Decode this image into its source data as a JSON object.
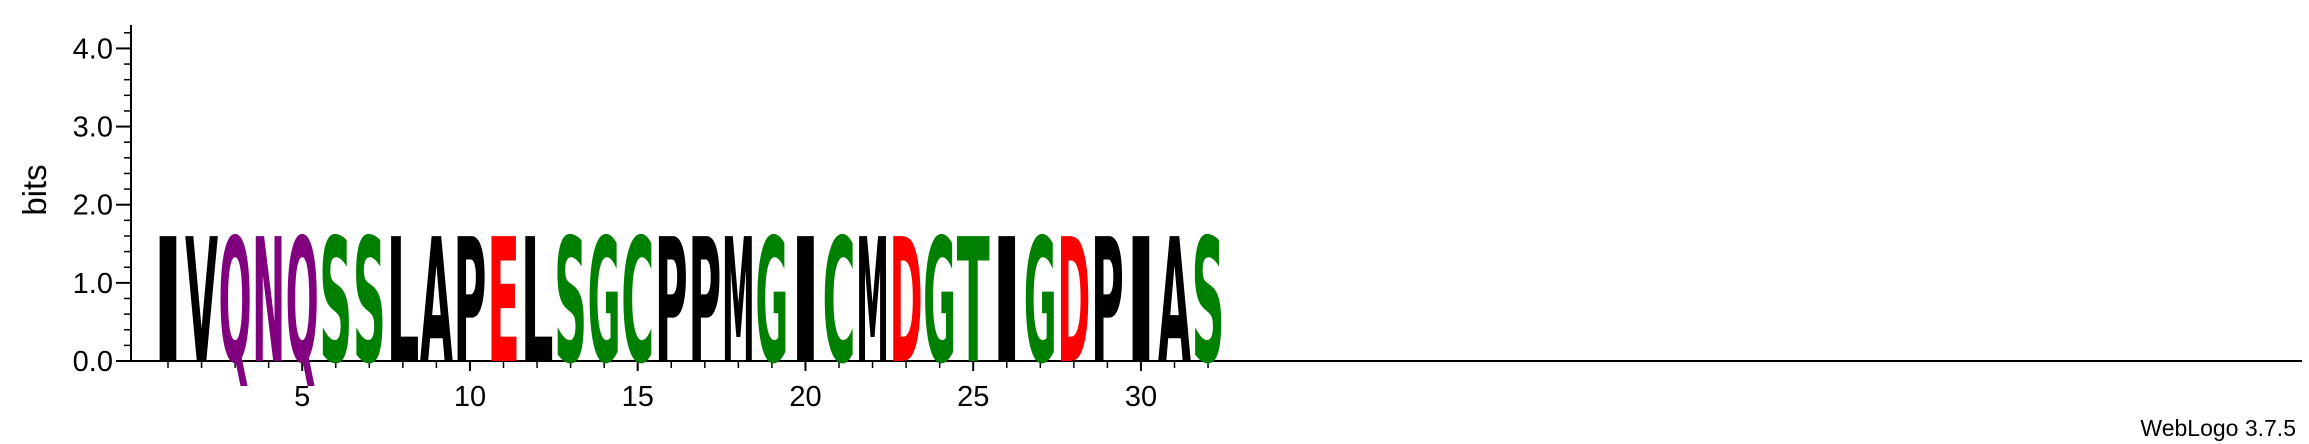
{
  "chart_data": {
    "type": "sequence-logo",
    "title": "",
    "xlabel": "",
    "ylabel": "bits",
    "ylim": [
      0,
      4.3
    ],
    "y_ticks": [
      "0.0",
      "1.0",
      "2.0",
      "3.0",
      "4.0"
    ],
    "y_tick_values": [
      0,
      1,
      2,
      3,
      4
    ],
    "x_ticks": [
      "5",
      "10",
      "15",
      "20",
      "25",
      "30"
    ],
    "x_tick_values": [
      5,
      10,
      15,
      20,
      25,
      30
    ],
    "positions": [
      1,
      2,
      3,
      4,
      5,
      6,
      7,
      8,
      9,
      10,
      11,
      12,
      13,
      14,
      15,
      16,
      17,
      18,
      19,
      20,
      21,
      22,
      23,
      24,
      25,
      26,
      27,
      28,
      29,
      30,
      31,
      32
    ],
    "letters": [
      "I",
      "V",
      "Q",
      "N",
      "Q",
      "S",
      "S",
      "L",
      "A",
      "P",
      "E",
      "L",
      "S",
      "G",
      "C",
      "P",
      "P",
      "M",
      "G",
      "I",
      "C",
      "M",
      "D",
      "G",
      "T",
      "I",
      "G",
      "D",
      "P",
      "I",
      "A",
      "S"
    ],
    "heights": [
      1.6,
      1.6,
      1.6,
      1.6,
      1.6,
      1.6,
      1.6,
      1.6,
      1.6,
      1.6,
      1.6,
      1.6,
      1.6,
      1.6,
      1.6,
      1.6,
      1.6,
      1.6,
      1.6,
      1.6,
      1.6,
      1.6,
      1.6,
      1.6,
      1.6,
      1.6,
      1.6,
      1.6,
      1.6,
      1.6,
      1.6,
      1.6
    ],
    "color_scheme": {
      "hydrophobic": "#000000",
      "polar": "#008000",
      "amide": "#800080",
      "acidic": "#ff0000"
    },
    "residue_colors": {
      "I": "#000000",
      "V": "#000000",
      "L": "#000000",
      "A": "#000000",
      "P": "#000000",
      "M": "#000000",
      "S": "#008000",
      "G": "#008000",
      "C": "#008000",
      "T": "#008000",
      "Q": "#800080",
      "N": "#800080",
      "E": "#ff0000",
      "D": "#ff0000"
    }
  },
  "credit": "WebLogo 3.7.5"
}
